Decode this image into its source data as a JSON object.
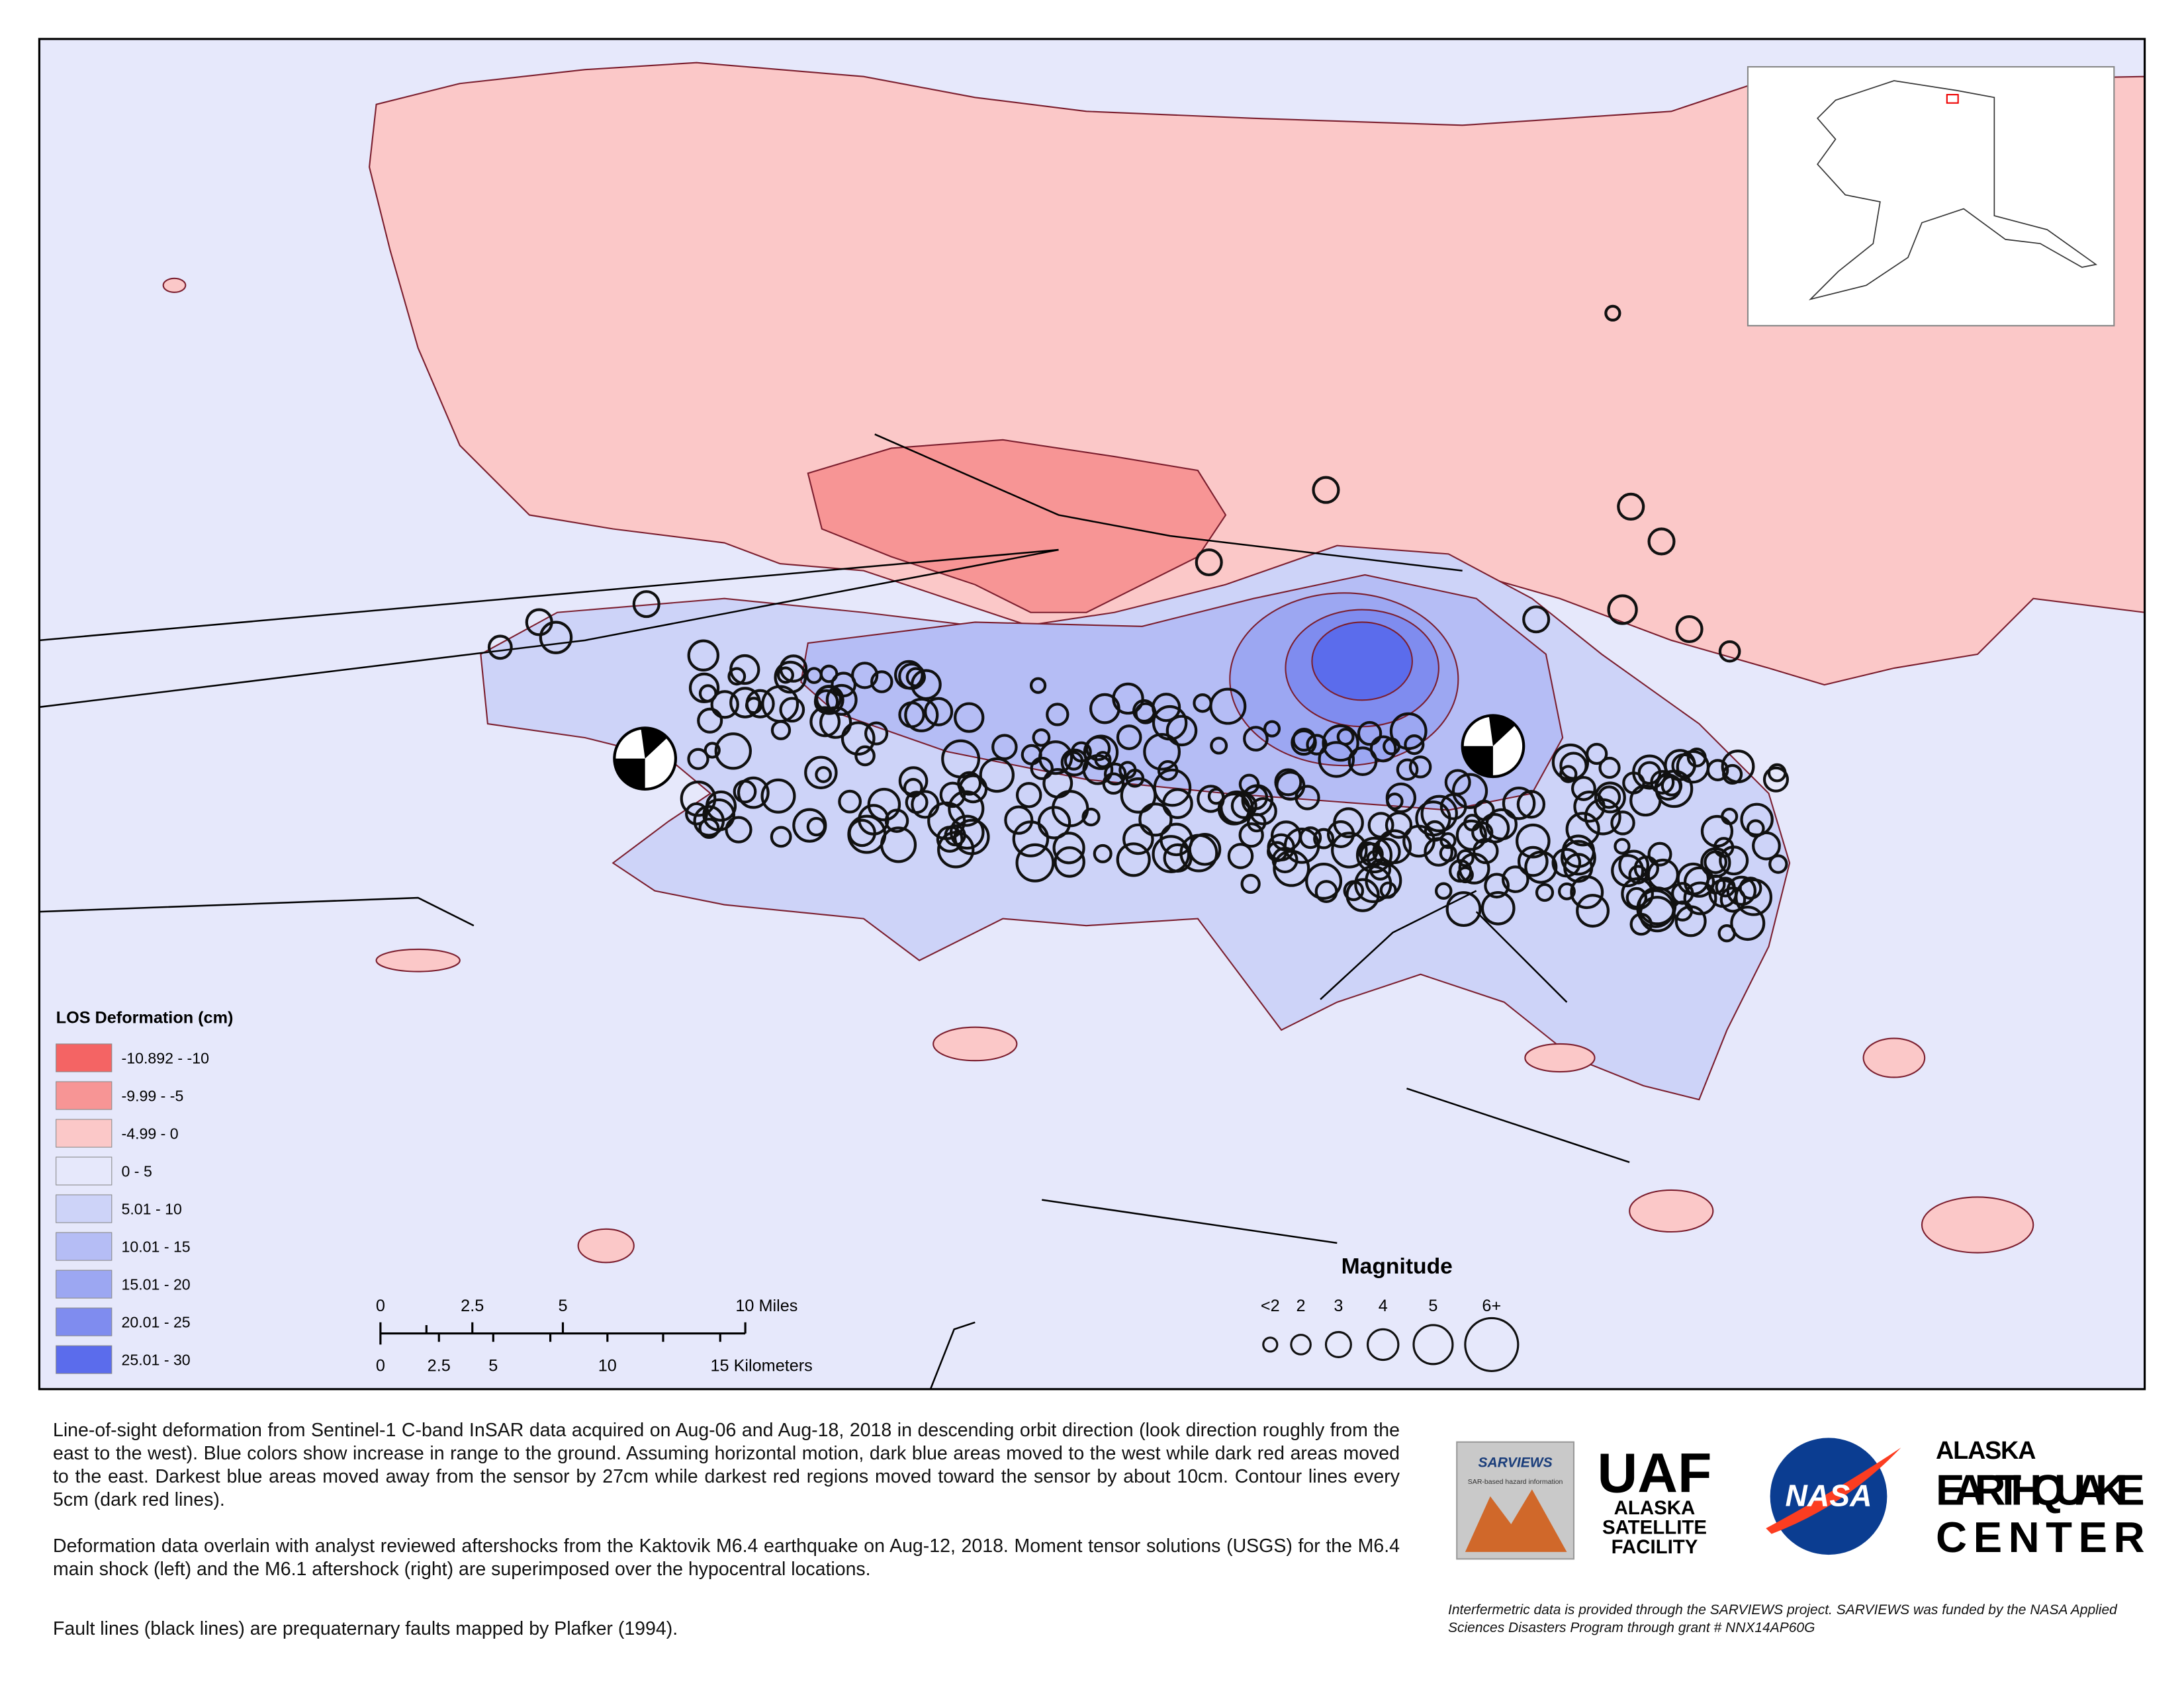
{
  "legend": {
    "title": "LOS Deformation (cm)",
    "classes": [
      {
        "label": "-10.892 - -10",
        "color": "#f46464"
      },
      {
        "label": "-9.99 - -5",
        "color": "#f79595"
      },
      {
        "label": "-4.99 - 0",
        "color": "#fbc8c8"
      },
      {
        "label": "0 - 5",
        "color": "#e6e8fb"
      },
      {
        "label": "5.01 - 10",
        "color": "#cdd3f8"
      },
      {
        "label": "10.01 - 15",
        "color": "#b5bdf5"
      },
      {
        "label": "15.01 - 20",
        "color": "#9ca7f2"
      },
      {
        "label": "20.01 - 25",
        "color": "#7f8cef"
      },
      {
        "label": "25.01 - 30",
        "color": "#5b6cec"
      }
    ]
  },
  "scale_bar": {
    "miles": [
      "0",
      "2.5",
      "5",
      "10 Miles"
    ],
    "kilometers": [
      "0",
      "2.5",
      "5",
      "10",
      "15 Kilometers"
    ]
  },
  "magnitude_legend": {
    "title": "Magnitude",
    "labels": [
      "<2",
      "2",
      "3",
      "4",
      "5",
      "6+"
    ]
  },
  "caption": {
    "paragraphs": [
      "Line-of-sight deformation from Sentinel-1 C-band InSAR data acquired on Aug-06 and Aug-18, 2018  in descending orbit direction (look direction roughly from the east to the west). Blue colors show increase in range to the ground. Assuming horizontal motion, dark blue areas moved to the west while dark red areas moved to the east. Darkest blue areas moved away from the sensor by  27cm while darkest red regions moved toward the sensor by about 10cm. Contour lines every 5cm (dark red lines).",
      "Deformation data overlain with analyst reviewed aftershocks from the Kaktovik M6.4 earthquake on Aug-12, 2018. Moment tensor solutions (USGS)  for the M6.4 main shock (left) and the M6.1 aftershock (right) are superimposed over the hypocentral locations.",
      "Fault lines (black lines) are prequaternary faults mapped by Plafker (1994)."
    ]
  },
  "credit": "Interfermetric data is provided through the SARVIEWS project. SARVIEWS was funded by the NASA Applied Sciences Disasters Program through grant # NNX14AP60G",
  "logos": {
    "sarviews": "SARVIEWS",
    "sarviews_tagline": "SAR-based hazard information",
    "uaf": "UAF",
    "uaf_name": [
      "ALASKA",
      "SATELLITE",
      "FACILITY"
    ],
    "nasa": "NASA",
    "aeic": [
      "ALASKA",
      "EARTHQUAKE",
      "CENTER"
    ]
  }
}
